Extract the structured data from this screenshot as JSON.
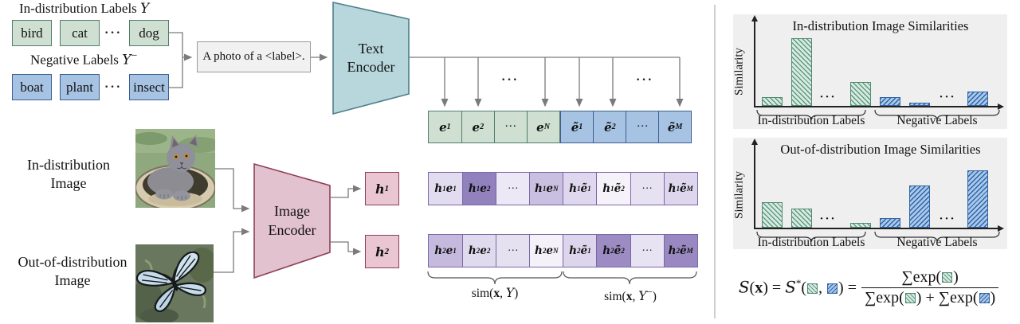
{
  "left": {
    "id_labels_title": {
      "text": "In-distribution Labels ",
      "symbol": "Y"
    },
    "neg_labels_title": {
      "text": "Negative Labels ",
      "symbol": "Y",
      "sup": "−"
    },
    "id_label_boxes": [
      "bird",
      "cat",
      "dog"
    ],
    "neg_label_boxes": [
      "boat",
      "plant",
      "insect"
    ],
    "row_dots": "···",
    "prompt": "A photo of a <label>.",
    "text_encoder": {
      "line1": "Text",
      "line2": "Encoder"
    },
    "image_encoder": {
      "line1": "Image",
      "line2": "Encoder"
    },
    "id_image_caption": {
      "line1": "In-distribution",
      "line2": "Image"
    },
    "ood_image_caption": {
      "line1": "Out-of-distribution",
      "line2": "Image"
    },
    "images": {
      "id_alt": "gray kitten lying in a woven basket",
      "ood_alt": "pale blue butterfly on green plants"
    }
  },
  "embeddings": [
    {
      "base": "e",
      "sub": "1"
    },
    {
      "base": "e",
      "sub": "2"
    },
    {
      "base": "···",
      "sub": ""
    },
    {
      "base": "e",
      "sub": "N"
    },
    {
      "base": "ẽ",
      "sub": "1"
    },
    {
      "base": "ẽ",
      "sub": "2"
    },
    {
      "base": "···",
      "sub": ""
    },
    {
      "base": "ẽ",
      "sub": "M"
    }
  ],
  "h1": {
    "base": "h",
    "sub": "1"
  },
  "h2": {
    "base": "h",
    "sub": "2"
  },
  "matrix": {
    "row1": [
      {
        "a": "h",
        "as": "1",
        "b": "e",
        "bs": "1",
        "shade": "#e2dcf0"
      },
      {
        "a": "h",
        "as": "1",
        "b": "e",
        "bs": "2",
        "shade": "#9181bd"
      },
      {
        "a": "···",
        "as": "",
        "b": "",
        "bs": "",
        "shade": "#ece8f5"
      },
      {
        "a": "h",
        "as": "1",
        "b": "e",
        "bs": "N",
        "shade": "#c9bfe0"
      },
      {
        "a": "h",
        "as": "1",
        "b": "ẽ",
        "bs": "1",
        "shade": "#ded7ee"
      },
      {
        "a": "h",
        "as": "1",
        "b": "ẽ",
        "bs": "2",
        "shade": "#f5f2fa"
      },
      {
        "a": "···",
        "as": "",
        "b": "",
        "bs": "",
        "shade": "#e7e2f2"
      },
      {
        "a": "h",
        "as": "1",
        "b": "ẽ",
        "bs": "M",
        "shade": "#ddd6ed"
      }
    ],
    "row2": [
      {
        "a": "h",
        "as": "2",
        "b": "e",
        "bs": "1",
        "shade": "#c5bade"
      },
      {
        "a": "h",
        "as": "2",
        "b": "e",
        "bs": "2",
        "shade": "#e0daee"
      },
      {
        "a": "···",
        "as": "",
        "b": "",
        "bs": "",
        "shade": "#e6e1f1"
      },
      {
        "a": "h",
        "as": "2",
        "b": "e",
        "bs": "N",
        "shade": "#f4f1f9"
      },
      {
        "a": "h",
        "as": "2",
        "b": "ẽ",
        "bs": "1",
        "shade": "#ddd5ec"
      },
      {
        "a": "h",
        "as": "2",
        "b": "ẽ",
        "bs": "2",
        "shade": "#9d8cc4"
      },
      {
        "a": "···",
        "as": "",
        "b": "",
        "bs": "",
        "shade": "#e8e3f2"
      },
      {
        "a": "h",
        "as": "2",
        "b": "ẽ",
        "bs": "M",
        "shade": "#9a88c2"
      }
    ]
  },
  "sim_id": {
    "fn": "sim(",
    "x": "x",
    "sep": ", ",
    "set": "Y",
    "close": ")"
  },
  "sim_neg": {
    "fn": "sim(",
    "x": "x",
    "sep": ", ",
    "set": "Y",
    "sup": "−",
    "close": ")"
  },
  "chart_data": [
    {
      "type": "bar",
      "title": "In-distribution Image Similarities",
      "ylabel": "Similarity",
      "x_dots": "···",
      "group_labels": [
        "In-distribution Labels",
        "Negative Labels"
      ],
      "series": [
        {
          "name": "In-distribution Labels",
          "color": "#cfe5da",
          "values": [
            0.1,
            0.76,
            null,
            0.27
          ]
        },
        {
          "name": "Negative Labels",
          "color": "#8fb9e2",
          "values": [
            0.1,
            0.04,
            null,
            0.16
          ]
        }
      ],
      "ylim": [
        0,
        1
      ],
      "grid": false,
      "legend": "none"
    },
    {
      "type": "bar",
      "title": "Out-of-distribution Image Similarities",
      "ylabel": "Similarity",
      "x_dots": "···",
      "group_labels": [
        "In-distribution Labels",
        "Negative Labels"
      ],
      "series": [
        {
          "name": "In-distribution Labels",
          "color": "#cfe5da",
          "values": [
            0.29,
            0.21,
            null,
            0.05
          ]
        },
        {
          "name": "Negative Labels",
          "color": "#8fb9e2",
          "values": [
            0.11,
            0.47,
            null,
            0.64
          ]
        }
      ],
      "ylim": [
        0,
        1
      ],
      "grid": false,
      "legend": "none"
    }
  ],
  "formula": {
    "func": "S",
    "open": "(",
    "x": "x",
    "close": ")",
    "eq": " = ",
    "star": "*",
    "comma": ", ",
    "sum": "∑exp(",
    "plus": " + "
  },
  "colors": {
    "id_green_fill": "#cfdfd2",
    "id_green_border": "#517d6d",
    "neg_blue_fill": "#a6c3e3",
    "neg_blue_border": "#3f5e8f",
    "text_encoder_fill": "#b7d7dc",
    "text_encoder_border": "#4f7f8b",
    "image_encoder_fill": "#e3c2d0",
    "image_encoder_border": "#8f3f56",
    "h_box_fill": "#e9c6d1",
    "h_box_border": "#8f3f56",
    "matrix_border": "#7a68a6",
    "panel_bg": "#efeff0",
    "bar_green_hatch": "#5f9a82",
    "bar_blue_hatch": "#2f62a8",
    "connector_gray": "#7b7b7b"
  }
}
